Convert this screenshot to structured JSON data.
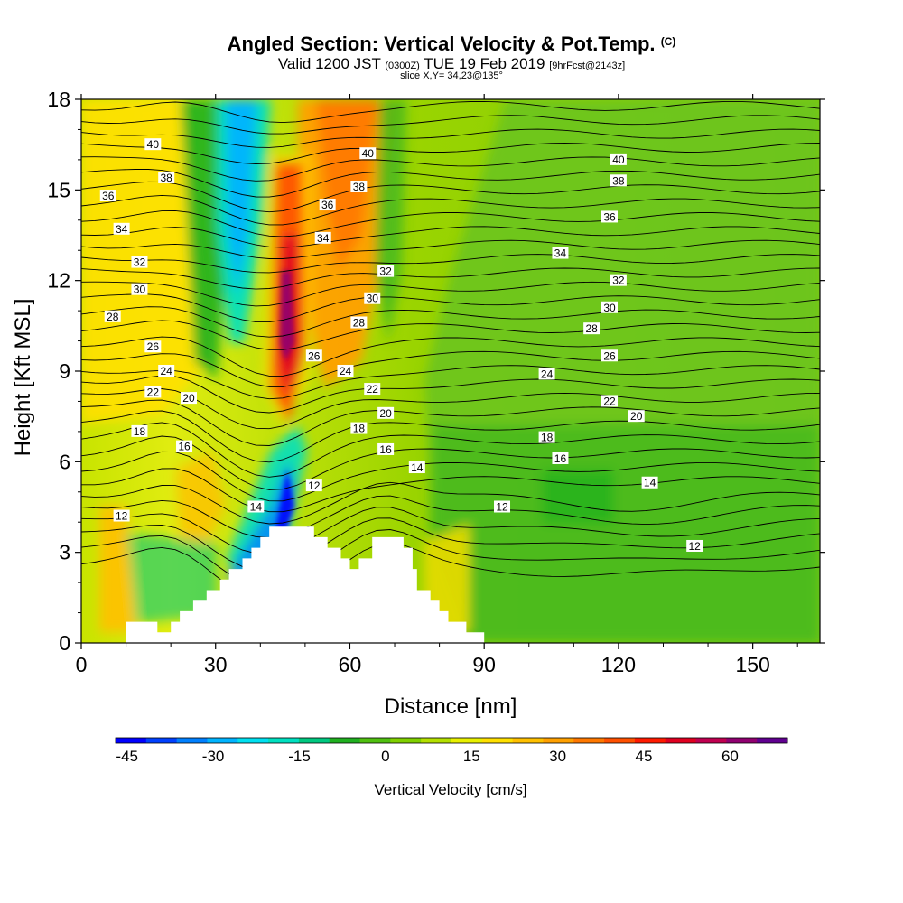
{
  "header": {
    "title": "Angled Section: Vertical Velocity & Pot.Temp.",
    "title_unit": "(C)",
    "valid_prefix": "Valid 1200 JST",
    "valid_utc": "(0300Z)",
    "valid_date": "TUE 19 Feb 2019",
    "forecast": "[9hrFcst@2143z]",
    "slice": "slice X,Y= 34,23@135°"
  },
  "chart_data": {
    "type": "heatmap",
    "title": "Angled Section: Vertical Velocity & Pot.Temp. (C)",
    "xlabel": "Distance [nm]",
    "ylabel": "Height [Kft MSL]",
    "xlim": [
      0,
      165
    ],
    "ylim": [
      0,
      18
    ],
    "xticks": [
      0,
      30,
      60,
      90,
      120,
      150
    ],
    "yticks": [
      0,
      3,
      6,
      9,
      12,
      15,
      18
    ],
    "colorbar": {
      "label": "Vertical Velocity [cm/s]",
      "ticks": [
        -45,
        -30,
        -15,
        0,
        15,
        30,
        45,
        60
      ],
      "range": [
        -47,
        70
      ],
      "colors": [
        "#0000ff",
        "#0040ff",
        "#0080ff",
        "#00b4ff",
        "#00e0f0",
        "#00e0c0",
        "#00c880",
        "#20b020",
        "#50c010",
        "#80d000",
        "#b4e000",
        "#e8f000",
        "#ffe000",
        "#ffc000",
        "#ffa000",
        "#ff7800",
        "#ff5000",
        "#ff1a00",
        "#e00020",
        "#c00050",
        "#900070",
        "#600090"
      ]
    },
    "terrain_profile_kft": [
      [
        10,
        0.7
      ],
      [
        17,
        0.7
      ],
      [
        17,
        0.35
      ],
      [
        20,
        0.35
      ],
      [
        20,
        0.7
      ],
      [
        22,
        0.7
      ],
      [
        22,
        1.05
      ],
      [
        25,
        1.05
      ],
      [
        25,
        1.4
      ],
      [
        28,
        1.4
      ],
      [
        28,
        1.75
      ],
      [
        31,
        1.75
      ],
      [
        31,
        2.1
      ],
      [
        33,
        2.1
      ],
      [
        33,
        2.45
      ],
      [
        36,
        2.45
      ],
      [
        36,
        2.8
      ],
      [
        38,
        2.8
      ],
      [
        38,
        3.15
      ],
      [
        40,
        3.15
      ],
      [
        40,
        3.5
      ],
      [
        42,
        3.5
      ],
      [
        42,
        3.85
      ],
      [
        52,
        3.85
      ],
      [
        52,
        3.5
      ],
      [
        55,
        3.5
      ],
      [
        55,
        3.15
      ],
      [
        58,
        3.15
      ],
      [
        58,
        2.8
      ],
      [
        60,
        2.8
      ],
      [
        60,
        2.45
      ],
      [
        62,
        2.45
      ],
      [
        62,
        2.8
      ],
      [
        65,
        2.8
      ],
      [
        65,
        3.5
      ],
      [
        72,
        3.5
      ],
      [
        72,
        3.15
      ],
      [
        74,
        3.15
      ],
      [
        74,
        2.45
      ],
      [
        75,
        2.45
      ],
      [
        75,
        1.75
      ],
      [
        78,
        1.75
      ],
      [
        78,
        1.4
      ],
      [
        80,
        1.4
      ],
      [
        80,
        1.05
      ],
      [
        82,
        1.05
      ],
      [
        82,
        0.7
      ],
      [
        86,
        0.7
      ],
      [
        86,
        0.35
      ],
      [
        90,
        0.35
      ]
    ],
    "contour_labels": [
      {
        "v": "40",
        "x": 16,
        "y": 16.5
      },
      {
        "v": "40",
        "x": 64,
        "y": 16.2
      },
      {
        "v": "40",
        "x": 120,
        "y": 16.0
      },
      {
        "v": "38",
        "x": 19,
        "y": 15.4
      },
      {
        "v": "38",
        "x": 62,
        "y": 15.1
      },
      {
        "v": "38",
        "x": 120,
        "y": 15.3
      },
      {
        "v": "36",
        "x": 6,
        "y": 14.8
      },
      {
        "v": "36",
        "x": 55,
        "y": 14.5
      },
      {
        "v": "36",
        "x": 118,
        "y": 14.1
      },
      {
        "v": "34",
        "x": 9,
        "y": 13.7
      },
      {
        "v": "34",
        "x": 54,
        "y": 13.4
      },
      {
        "v": "34",
        "x": 107,
        "y": 12.9
      },
      {
        "v": "32",
        "x": 13,
        "y": 12.6
      },
      {
        "v": "32",
        "x": 68,
        "y": 12.3
      },
      {
        "v": "32",
        "x": 120,
        "y": 12.0
      },
      {
        "v": "30",
        "x": 13,
        "y": 11.7
      },
      {
        "v": "30",
        "x": 65,
        "y": 11.4
      },
      {
        "v": "30",
        "x": 118,
        "y": 11.1
      },
      {
        "v": "28",
        "x": 7,
        "y": 10.8
      },
      {
        "v": "28",
        "x": 62,
        "y": 10.6
      },
      {
        "v": "28",
        "x": 114,
        "y": 10.4
      },
      {
        "v": "26",
        "x": 16,
        "y": 9.8
      },
      {
        "v": "26",
        "x": 52,
        "y": 9.5
      },
      {
        "v": "26",
        "x": 118,
        "y": 9.5
      },
      {
        "v": "24",
        "x": 19,
        "y": 9.0
      },
      {
        "v": "24",
        "x": 59,
        "y": 9.0
      },
      {
        "v": "24",
        "x": 104,
        "y": 8.9
      },
      {
        "v": "22",
        "x": 16,
        "y": 8.3
      },
      {
        "v": "22",
        "x": 65,
        "y": 8.4
      },
      {
        "v": "22",
        "x": 118,
        "y": 8.0
      },
      {
        "v": "20",
        "x": 24,
        "y": 8.1
      },
      {
        "v": "20",
        "x": 68,
        "y": 7.6
      },
      {
        "v": "20",
        "x": 124,
        "y": 7.5
      },
      {
        "v": "18",
        "x": 13,
        "y": 7.0
      },
      {
        "v": "18",
        "x": 62,
        "y": 7.1
      },
      {
        "v": "18",
        "x": 104,
        "y": 6.8
      },
      {
        "v": "16",
        "x": 23,
        "y": 6.5
      },
      {
        "v": "16",
        "x": 68,
        "y": 6.4
      },
      {
        "v": "16",
        "x": 107,
        "y": 6.1
      },
      {
        "v": "14",
        "x": 39,
        "y": 4.5
      },
      {
        "v": "14",
        "x": 75,
        "y": 5.8
      },
      {
        "v": "14",
        "x": 127,
        "y": 5.3
      },
      {
        "v": "12",
        "x": 9,
        "y": 4.2
      },
      {
        "v": "12",
        "x": 52,
        "y": 5.2
      },
      {
        "v": "12",
        "x": 94,
        "y": 4.5
      },
      {
        "v": "12",
        "x": 137,
        "y": 3.2
      }
    ]
  },
  "colors": {
    "background": "#ffffff",
    "terrain": "#ffffff",
    "contour": "#000000"
  }
}
